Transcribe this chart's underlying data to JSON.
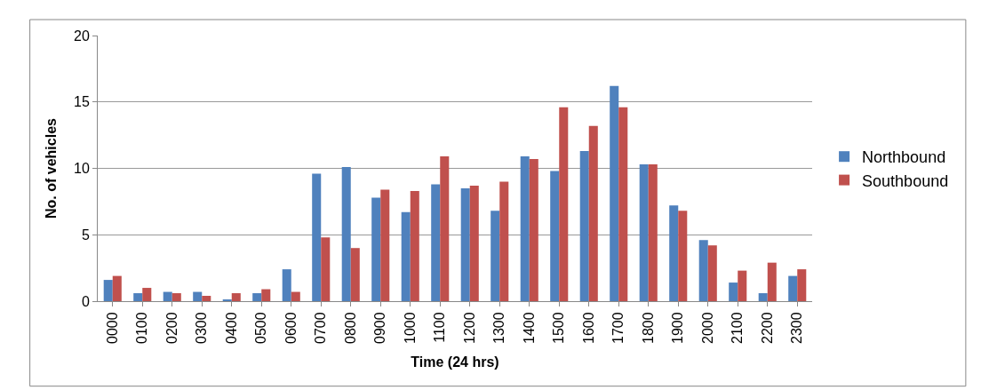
{
  "chart_data": {
    "type": "bar",
    "xlabel": "Time (24 hrs)",
    "ylabel": "No. of vehicles",
    "categories": [
      "0000",
      "0100",
      "0200",
      "0300",
      "0400",
      "0500",
      "0600",
      "0700",
      "0800",
      "0900",
      "1000",
      "1100",
      "1200",
      "1300",
      "1400",
      "1500",
      "1600",
      "1700",
      "1800",
      "1900",
      "2000",
      "2100",
      "2200",
      "2300"
    ],
    "series": [
      {
        "name": "Northbound",
        "color": "#4f81bd",
        "values": [
          1.6,
          0.6,
          0.7,
          0.7,
          0.1,
          0.6,
          2.4,
          9.6,
          10.1,
          7.8,
          6.7,
          8.8,
          8.5,
          6.8,
          10.9,
          9.8,
          11.3,
          16.2,
          10.3,
          7.2,
          4.6,
          1.4,
          0.6,
          1.9
        ]
      },
      {
        "name": "Southbound",
        "color": "#c0504d",
        "values": [
          1.9,
          1.0,
          0.6,
          0.4,
          0.6,
          0.9,
          0.7,
          4.8,
          4.0,
          8.4,
          8.3,
          10.9,
          8.7,
          9.0,
          10.7,
          14.6,
          13.2,
          14.6,
          10.3,
          6.8,
          4.2,
          2.3,
          2.9,
          2.4
        ]
      }
    ],
    "ylim": [
      0,
      20
    ],
    "yticks": [
      0,
      5,
      10,
      15,
      20
    ],
    "grid": "y",
    "legend": "right"
  }
}
